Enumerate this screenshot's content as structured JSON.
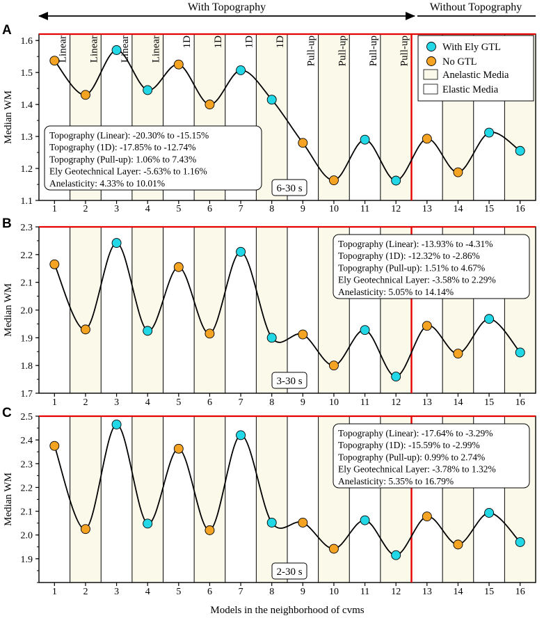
{
  "header": {
    "with_topography": "With Topography",
    "without_topography": "Without Topography"
  },
  "legend": {
    "with_gtl": "With Ely GTL",
    "no_gtl": "No GTL",
    "anelastic": "Anelastic Media",
    "elastic": "Elastic Media"
  },
  "colors": {
    "with_gtl": "#22d8e6",
    "no_gtl": "#f4a422",
    "anelastic": "#fbfaea",
    "elastic": "#ffffff",
    "divider": "#e60000",
    "curve": "#000000"
  },
  "column_labels": [
    "Linear",
    "Linear",
    "Linear",
    "Linear",
    "1D",
    "1D",
    "1D",
    "1D",
    "Pull-up",
    "Pull-up",
    "Pull-up",
    "Pull-up"
  ],
  "chart_data": [
    {
      "type": "line",
      "panel": "A",
      "ylabel": "Median WM",
      "ylim": [
        1.1,
        1.62
      ],
      "yticks": [
        1.1,
        1.2,
        1.3,
        1.4,
        1.5,
        1.6
      ],
      "period": "6-30 s",
      "x": [
        1,
        2,
        3,
        4,
        5,
        6,
        7,
        8,
        9,
        10,
        11,
        12,
        13,
        14,
        15,
        16
      ],
      "values": [
        1.537,
        1.43,
        1.57,
        1.445,
        1.525,
        1.4,
        1.507,
        1.415,
        1.28,
        1.163,
        1.29,
        1.162,
        1.293,
        1.188,
        1.312,
        1.255
      ],
      "series_type": [
        "No GTL",
        "No GTL",
        "With Ely GTL",
        "With Ely GTL",
        "No GTL",
        "No GTL",
        "With Ely GTL",
        "With Ely GTL",
        "No GTL",
        "No GTL",
        "With Ely GTL",
        "With Ely GTL",
        "No GTL",
        "No GTL",
        "With Ely GTL",
        "With Ely GTL"
      ],
      "annotations": [
        "Topography (Linear): -20.30% to -15.15%",
        "Topography (1D): -17.85% to -12.74%",
        "Topography (Pull-up): 1.06% to 7.43%",
        "Ely Geotechnical Layer: -5.63% to 1.16%",
        "Anelasticity: 4.33% to 10.01%"
      ]
    },
    {
      "type": "line",
      "panel": "B",
      "ylabel": "Median WM",
      "ylim": [
        1.7,
        2.3
      ],
      "yticks": [
        1.7,
        1.8,
        1.9,
        2.0,
        2.1,
        2.2,
        2.3
      ],
      "period": "3-30 s",
      "x": [
        1,
        2,
        3,
        4,
        5,
        6,
        7,
        8,
        9,
        10,
        11,
        12,
        13,
        14,
        15,
        16
      ],
      "values": [
        2.165,
        1.93,
        2.242,
        1.925,
        2.155,
        1.915,
        2.21,
        1.9,
        1.912,
        1.8,
        1.928,
        1.76,
        1.943,
        1.843,
        1.968,
        1.847
      ],
      "series_type": [
        "No GTL",
        "No GTL",
        "With Ely GTL",
        "With Ely GTL",
        "No GTL",
        "No GTL",
        "With Ely GTL",
        "With Ely GTL",
        "No GTL",
        "No GTL",
        "With Ely GTL",
        "With Ely GTL",
        "No GTL",
        "No GTL",
        "With Ely GTL",
        "With Ely GTL"
      ],
      "annotations": [
        "Topography (Linear): -13.93% to -4.31%",
        "Topography (1D): -12.32% to -2.86%",
        "Topography (Pull-up): 1.51% to 4.67%",
        "Ely Geotechnical Layer: -3.58% to 2.29%",
        "Anelasticity: 5.05% to 14.14%"
      ]
    },
    {
      "type": "line",
      "panel": "C",
      "ylabel": "Median WM",
      "ylim": [
        1.8,
        2.5
      ],
      "yticks": [
        1.9,
        2.0,
        2.1,
        2.2,
        2.3,
        2.4,
        2.5
      ],
      "period": "2-30 s",
      "xlabel": "Models in the neighborhood of cvms",
      "x": [
        1,
        2,
        3,
        4,
        5,
        6,
        7,
        8,
        9,
        10,
        11,
        12,
        13,
        14,
        15,
        16
      ],
      "values": [
        2.375,
        2.025,
        2.465,
        2.048,
        2.363,
        2.02,
        2.42,
        2.052,
        2.052,
        1.942,
        2.062,
        1.915,
        2.078,
        1.96,
        2.093,
        1.97
      ],
      "series_type": [
        "No GTL",
        "No GTL",
        "With Ely GTL",
        "With Ely GTL",
        "No GTL",
        "No GTL",
        "With Ely GTL",
        "With Ely GTL",
        "No GTL",
        "No GTL",
        "With Ely GTL",
        "With Ely GTL",
        "No GTL",
        "No GTL",
        "With Ely GTL",
        "With Ely GTL"
      ],
      "annotations": [
        "Topography (Linear): -17.64% to -3.29%",
        "Topography (1D): -15.59% to -2.99%",
        "Topography (Pull-up): 0.99% to 2.74%",
        "Ely Geotechnical Layer: -3.78% to 1.32%",
        "Anelasticity: 5.35% to 16.79%"
      ]
    }
  ]
}
